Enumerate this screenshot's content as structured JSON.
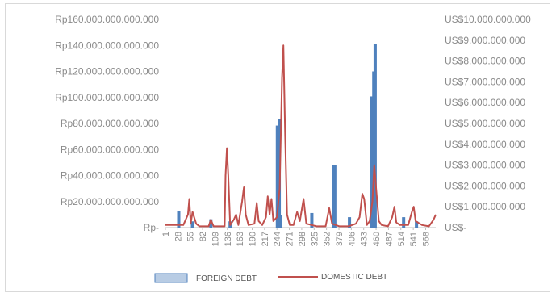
{
  "chart_data": {
    "type": "bar+line",
    "title": "",
    "legend_position": "bottom",
    "grid": false,
    "left_axis": {
      "ticks": [
        "Rp160.000.000.000.000",
        "Rp140.000.000.000.000",
        "Rp120.000.000.000.000",
        "Rp100.000.000.000.000",
        "Rp80.000.000.000.000",
        "Rp60.000.000.000.000",
        "Rp40.000.000.000.000",
        "Rp20.000.000.000.000",
        "Rp-"
      ],
      "ylim": [
        0,
        160000000000000
      ]
    },
    "right_axis": {
      "ticks": [
        "US$10.000.000.000",
        "US$9.000.000.000",
        "US$8.000.000.000",
        "US$7.000.000.000",
        "US$6.000.000.000",
        "US$5.000.000.000",
        "US$4.000.000.000",
        "US$3.000.000.000",
        "US$2.000.000.000",
        "US$1.000.000.000",
        "US$-"
      ],
      "ylim": [
        0,
        10000000000
      ]
    },
    "x_ticks": [
      "1",
      "28",
      "55",
      "82",
      "109",
      "136",
      "163",
      "190",
      "217",
      "244",
      "271",
      "298",
      "325",
      "352",
      "379",
      "406",
      "433",
      "460",
      "487",
      "514",
      "541",
      "568"
    ],
    "x_range": [
      1,
      590
    ],
    "series": [
      {
        "name": "FOREIGN DEBT",
        "kind": "bar",
        "axis": "right",
        "color": "#4f81bd",
        "points": [
          [
            30,
            800000000.0
          ],
          [
            60,
            300000000.0
          ],
          [
            100,
            400000000.0
          ],
          [
            142,
            300000000.0
          ],
          [
            245,
            4900000000.0
          ],
          [
            249,
            5200000000.0
          ],
          [
            252,
            600000000.0
          ],
          [
            320,
            700000000.0
          ],
          [
            368,
            3000000000.0
          ],
          [
            370,
            3000000000.0
          ],
          [
            402,
            500000000.0
          ],
          [
            450,
            6300000000.0
          ],
          [
            455,
            7500000000.0
          ],
          [
            458,
            8800000000.0
          ],
          [
            520,
            500000000.0
          ],
          [
            548,
            300000000.0
          ]
        ]
      },
      {
        "name": "DOMESTIC DEBT",
        "kind": "line",
        "axis": "left",
        "color": "#c0504d",
        "points": [
          [
            1,
            2000000000000.0
          ],
          [
            40,
            2000000000000.0
          ],
          [
            50,
            10000000000000.0
          ],
          [
            53,
            22000000000000.0
          ],
          [
            56,
            3000000000000.0
          ],
          [
            60,
            12000000000000.0
          ],
          [
            68,
            3000000000000.0
          ],
          [
            75,
            1000000000000.0
          ],
          [
            95,
            1000000000000.0
          ],
          [
            100,
            6000000000000.0
          ],
          [
            106,
            1000000000000.0
          ],
          [
            130,
            1000000000000.0
          ],
          [
            132,
            40000000000000.0
          ],
          [
            135,
            61000000000000.0
          ],
          [
            138,
            40000000000000.0
          ],
          [
            142,
            2000000000000.0
          ],
          [
            150,
            6000000000000.0
          ],
          [
            155,
            10000000000000.0
          ],
          [
            160,
            2000000000000.0
          ],
          [
            168,
            20000000000000.0
          ],
          [
            172,
            31000000000000.0
          ],
          [
            176,
            10000000000000.0
          ],
          [
            182,
            2000000000000.0
          ],
          [
            195,
            3000000000000.0
          ],
          [
            200,
            19000000000000.0
          ],
          [
            204,
            5000000000000.0
          ],
          [
            212,
            2000000000000.0
          ],
          [
            220,
            8000000000000.0
          ],
          [
            224,
            24000000000000.0
          ],
          [
            228,
            10000000000000.0
          ],
          [
            232,
            22000000000000.0
          ],
          [
            236,
            5000000000000.0
          ],
          [
            244,
            8000000000000.0
          ],
          [
            250,
            30000000000000.0
          ],
          [
            255,
            115000000000000.0
          ],
          [
            258,
            140000000000000.0
          ],
          [
            262,
            70000000000000.0
          ],
          [
            266,
            10000000000000.0
          ],
          [
            272,
            2000000000000.0
          ],
          [
            280,
            2000000000000.0
          ],
          [
            288,
            12000000000000.0
          ],
          [
            294,
            5000000000000.0
          ],
          [
            302,
            22000000000000.0
          ],
          [
            308,
            3000000000000.0
          ],
          [
            320,
            2000000000000.0
          ],
          [
            330,
            1000000000000.0
          ],
          [
            350,
            1000000000000.0
          ],
          [
            358,
            15000000000000.0
          ],
          [
            364,
            3000000000000.0
          ],
          [
            380,
            1000000000000.0
          ],
          [
            400,
            1000000000000.0
          ],
          [
            416,
            3000000000000.0
          ],
          [
            424,
            8000000000000.0
          ],
          [
            430,
            26000000000000.0
          ],
          [
            434,
            22000000000000.0
          ],
          [
            440,
            2000000000000.0
          ],
          [
            446,
            5000000000000.0
          ],
          [
            452,
            20000000000000.0
          ],
          [
            456,
            48000000000000.0
          ],
          [
            460,
            30000000000000.0
          ],
          [
            466,
            5000000000000.0
          ],
          [
            472,
            2000000000000.0
          ],
          [
            486,
            1000000000000.0
          ],
          [
            495,
            8000000000000.0
          ],
          [
            500,
            16000000000000.0
          ],
          [
            504,
            4000000000000.0
          ],
          [
            512,
            2000000000000.0
          ],
          [
            530,
            2000000000000.0
          ],
          [
            538,
            12000000000000.0
          ],
          [
            542,
            16000000000000.0
          ],
          [
            546,
            5000000000000.0
          ],
          [
            560,
            2000000000000.0
          ],
          [
            575,
            1000000000000.0
          ],
          [
            585,
            6000000000000.0
          ],
          [
            590,
            10000000000000.0
          ]
        ]
      }
    ]
  },
  "legend": {
    "foreign_label": "FOREIGN DEBT",
    "domestic_label": "DOMESTIC DEBT"
  }
}
